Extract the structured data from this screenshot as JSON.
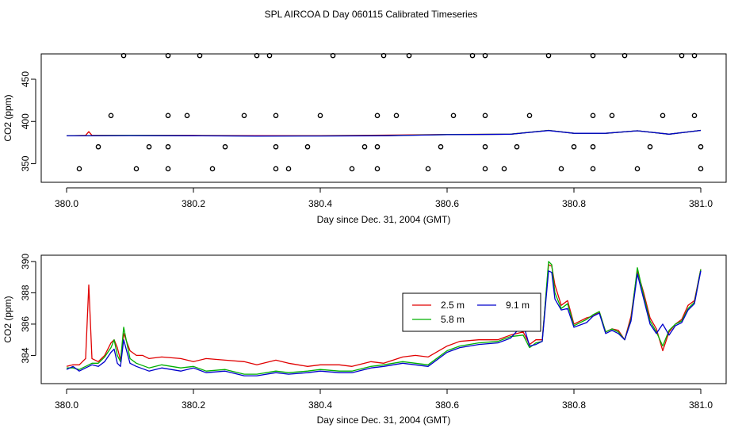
{
  "title": "SPL AIRCOA D  Day 060115  Calibrated Timeseries",
  "chart_data": [
    {
      "type": "scatter",
      "name": "top-panel",
      "xlabel": "Day since Dec. 31, 2004 (GMT)",
      "ylabel": "CO2 (ppm)",
      "xlim": [
        380.0,
        381.0
      ],
      "ylim": [
        328,
        480
      ],
      "xticks": [
        380.0,
        380.2,
        380.4,
        380.6,
        380.8,
        381.0
      ],
      "xtick_labels": [
        "380.0",
        "380.2",
        "380.4",
        "380.6",
        "380.8",
        "381.0"
      ],
      "yticks": [
        350,
        400,
        450
      ],
      "ytick_labels": [
        "350",
        "400",
        "450"
      ],
      "marker_levels": [
        344,
        370,
        407,
        478
      ],
      "markers": [
        {
          "level": 478,
          "x": [
            380.09,
            380.16,
            380.21,
            380.3,
            380.32,
            380.42,
            380.5,
            380.54,
            380.64,
            380.66,
            380.76,
            380.83,
            380.88,
            380.97,
            380.99
          ]
        },
        {
          "level": 407,
          "x": [
            380.07,
            380.16,
            380.19,
            380.28,
            380.33,
            380.4,
            380.49,
            380.52,
            380.61,
            380.66,
            380.73,
            380.83,
            380.86,
            380.94,
            380.99
          ]
        },
        {
          "level": 370,
          "x": [
            380.05,
            380.13,
            380.16,
            380.25,
            380.33,
            380.38,
            380.47,
            380.49,
            380.59,
            380.66,
            380.71,
            380.8,
            380.83,
            380.92,
            381.0
          ]
        },
        {
          "level": 344,
          "x": [
            380.02,
            380.11,
            380.16,
            380.23,
            380.33,
            380.35,
            380.45,
            380.49,
            380.57,
            380.66,
            380.69,
            380.78,
            380.83,
            380.9,
            381.0
          ]
        }
      ],
      "series": [
        {
          "name": "2.5 m",
          "color": "#e00000",
          "x": [
            380.0,
            380.03,
            380.035,
            380.04,
            380.1,
            380.2,
            380.3,
            380.4,
            380.5,
            380.6,
            380.7,
            380.76,
            380.8,
            380.85,
            380.9,
            380.95,
            381.0
          ],
          "y": [
            383,
            383.5,
            388,
            383.5,
            383.5,
            383.5,
            383.3,
            383.3,
            383.8,
            384.6,
            385,
            389.5,
            386,
            386,
            389,
            385,
            389.5
          ]
        },
        {
          "name": "5.8 m",
          "color": "#00b000",
          "x": [
            380.0,
            380.1,
            380.2,
            380.3,
            380.4,
            380.5,
            380.6,
            380.7,
            380.76,
            380.8,
            380.85,
            380.9,
            380.95,
            381.0
          ],
          "y": [
            383,
            383.5,
            383.2,
            382.8,
            382.9,
            383.2,
            384.5,
            385,
            389.5,
            386,
            386,
            389,
            385,
            389.5
          ]
        },
        {
          "name": "9.1 m",
          "color": "#0000cc",
          "x": [
            380.0,
            380.1,
            380.2,
            380.3,
            380.4,
            380.5,
            380.6,
            380.7,
            380.76,
            380.8,
            380.85,
            380.9,
            380.95,
            381.0
          ],
          "y": [
            383,
            383.3,
            383.1,
            382.7,
            382.8,
            383.1,
            384.4,
            384.9,
            389.3,
            386,
            386,
            389,
            385,
            389.5
          ]
        }
      ]
    },
    {
      "type": "line",
      "name": "bottom-panel",
      "xlabel": "Day since Dec. 31, 2004 (GMT)",
      "ylabel": "CO2 (ppm)",
      "xlim": [
        380.0,
        381.0
      ],
      "ylim": [
        382.2,
        390.4
      ],
      "xticks": [
        380.0,
        380.2,
        380.4,
        380.6,
        380.8,
        381.0
      ],
      "xtick_labels": [
        "380.0",
        "380.2",
        "380.4",
        "380.6",
        "380.8",
        "381.0"
      ],
      "yticks": [
        384,
        386,
        388,
        390
      ],
      "ytick_labels": [
        "384",
        "386",
        "388",
        "390"
      ],
      "legend_position": "center-right",
      "series": [
        {
          "name": "2.5 m",
          "color": "#e00000",
          "x": [
            380.0,
            380.01,
            380.02,
            380.025,
            380.03,
            380.035,
            380.04,
            380.05,
            380.06,
            380.07,
            380.075,
            380.08,
            380.085,
            380.09,
            380.1,
            380.11,
            380.12,
            380.13,
            380.15,
            380.18,
            380.2,
            380.22,
            380.25,
            380.28,
            380.3,
            380.33,
            380.35,
            380.38,
            380.4,
            380.43,
            380.45,
            380.48,
            380.5,
            380.53,
            380.55,
            380.57,
            380.6,
            380.62,
            380.65,
            380.68,
            380.7,
            380.72,
            380.73,
            380.74,
            380.75,
            380.76,
            380.765,
            380.77,
            380.78,
            380.79,
            380.8,
            380.82,
            380.83,
            380.84,
            380.85,
            380.86,
            380.87,
            380.88,
            380.89,
            380.9,
            380.91,
            380.92,
            380.93,
            380.94,
            380.95,
            380.96,
            380.97,
            380.98,
            380.99,
            381.0
          ],
          "y": [
            383.3,
            383.4,
            383.4,
            383.6,
            383.8,
            388.5,
            383.8,
            383.6,
            384.0,
            384.8,
            385.0,
            384.5,
            383.7,
            385.4,
            384.3,
            384.0,
            384.0,
            383.8,
            383.9,
            383.8,
            383.6,
            383.8,
            383.7,
            383.6,
            383.4,
            383.7,
            383.5,
            383.3,
            383.4,
            383.4,
            383.3,
            383.6,
            383.5,
            383.9,
            384.0,
            383.9,
            384.6,
            384.9,
            385.0,
            385.0,
            385.3,
            385.5,
            384.7,
            385.0,
            385.0,
            389.8,
            389.7,
            388.5,
            387.2,
            387.5,
            386.0,
            386.4,
            386.5,
            386.8,
            385.5,
            385.7,
            385.6,
            385.0,
            386.5,
            389.4,
            388.0,
            386.4,
            385.7,
            384.3,
            385.5,
            386.0,
            386.3,
            387.2,
            387.5,
            389.5
          ]
        },
        {
          "name": "5.8 m",
          "color": "#00b000",
          "x": [
            380.0,
            380.01,
            380.02,
            380.03,
            380.04,
            380.05,
            380.06,
            380.07,
            380.075,
            380.08,
            380.085,
            380.09,
            380.1,
            380.11,
            380.13,
            380.15,
            380.18,
            380.2,
            380.22,
            380.25,
            380.28,
            380.3,
            380.33,
            380.35,
            380.38,
            380.4,
            380.43,
            380.45,
            380.48,
            380.5,
            380.53,
            380.55,
            380.57,
            380.6,
            380.62,
            380.65,
            380.68,
            380.7,
            380.72,
            380.73,
            380.74,
            380.75,
            380.76,
            380.765,
            380.77,
            380.78,
            380.79,
            380.8,
            380.82,
            380.83,
            380.84,
            380.85,
            380.86,
            380.87,
            380.88,
            380.89,
            380.9,
            380.91,
            380.92,
            380.93,
            380.94,
            380.95,
            380.96,
            380.97,
            380.98,
            380.99,
            381.0
          ],
          "y": [
            383.2,
            383.2,
            383.1,
            383.3,
            383.5,
            383.5,
            383.9,
            384.5,
            385.0,
            384.0,
            383.6,
            385.8,
            383.8,
            383.5,
            383.2,
            383.4,
            383.2,
            383.3,
            383.0,
            383.1,
            382.8,
            382.8,
            383.0,
            382.9,
            383.0,
            383.1,
            383.0,
            383.0,
            383.3,
            383.4,
            383.6,
            383.5,
            383.4,
            384.3,
            384.6,
            384.8,
            384.9,
            385.2,
            385.3,
            384.5,
            384.8,
            384.9,
            390.0,
            389.8,
            388.0,
            387.0,
            387.3,
            385.9,
            386.3,
            386.6,
            386.8,
            385.5,
            385.7,
            385.5,
            385.0,
            386.3,
            389.6,
            387.8,
            386.2,
            385.5,
            384.6,
            385.6,
            386.0,
            386.2,
            387.0,
            387.4,
            389.5
          ]
        },
        {
          "name": "9.1 m",
          "color": "#0000cc",
          "x": [
            380.0,
            380.01,
            380.02,
            380.03,
            380.04,
            380.05,
            380.06,
            380.07,
            380.075,
            380.08,
            380.085,
            380.09,
            380.1,
            380.11,
            380.13,
            380.15,
            380.18,
            380.2,
            380.22,
            380.25,
            380.28,
            380.3,
            380.33,
            380.35,
            380.38,
            380.4,
            380.43,
            380.45,
            380.48,
            380.5,
            380.53,
            380.55,
            380.57,
            380.6,
            380.62,
            380.65,
            380.68,
            380.7,
            380.72,
            380.73,
            380.74,
            380.75,
            380.76,
            380.765,
            380.77,
            380.78,
            380.79,
            380.8,
            380.82,
            380.83,
            380.84,
            380.85,
            380.86,
            380.87,
            380.88,
            380.89,
            380.9,
            380.91,
            380.92,
            380.93,
            380.94,
            380.95,
            380.96,
            380.97,
            380.98,
            380.99,
            381.0
          ],
          "y": [
            383.1,
            383.3,
            383.0,
            383.2,
            383.4,
            383.3,
            383.6,
            384.2,
            384.4,
            383.5,
            383.3,
            385.0,
            383.5,
            383.3,
            383.0,
            383.2,
            383.0,
            383.2,
            382.9,
            383.0,
            382.7,
            382.7,
            382.9,
            382.8,
            382.9,
            383.0,
            382.9,
            382.9,
            383.2,
            383.3,
            383.5,
            383.4,
            383.3,
            384.2,
            384.5,
            384.7,
            384.8,
            385.1,
            386.0,
            384.6,
            384.7,
            384.9,
            389.4,
            389.3,
            387.6,
            386.9,
            387.0,
            385.8,
            386.1,
            386.5,
            386.7,
            385.4,
            385.6,
            385.4,
            385.0,
            386.2,
            389.2,
            387.6,
            386.0,
            385.4,
            386.0,
            385.3,
            385.9,
            386.1,
            386.9,
            387.3,
            389.4
          ]
        }
      ]
    }
  ]
}
